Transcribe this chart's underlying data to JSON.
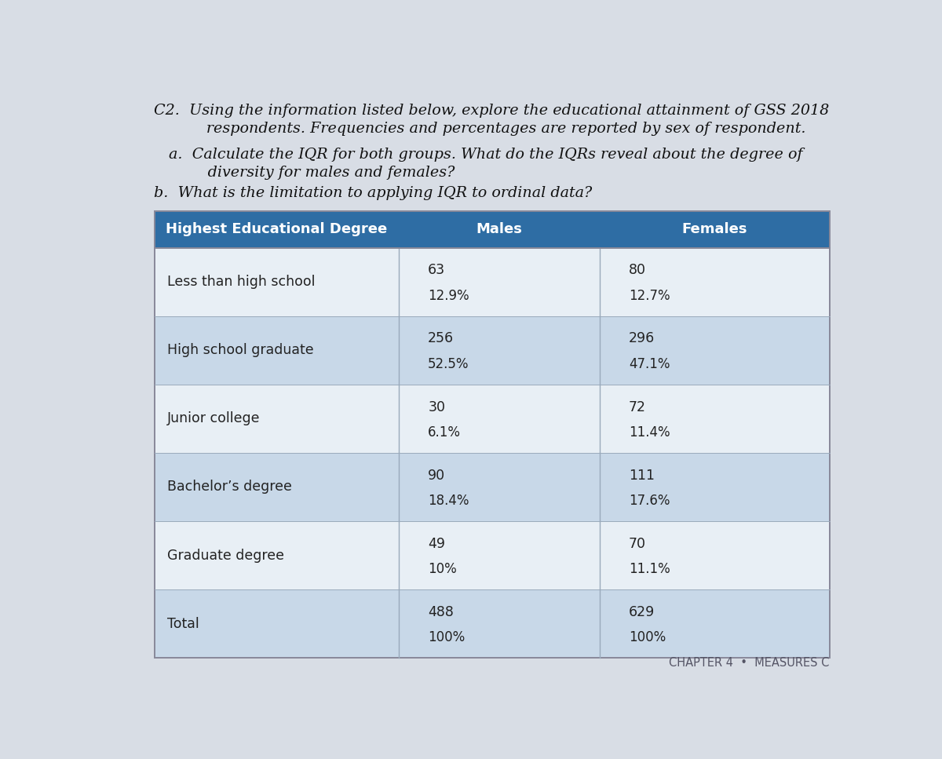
{
  "title_line1": "C2.  Using the information listed below, explore the educational attainment of GSS 2018",
  "title_line2": "       respondents. Frequencies and percentages are reported by sex of respondent.",
  "question_a_line1": "a.  Calculate the IQR for both groups. What do the IQRs reveal about the degree of",
  "question_a_line2": "     diversity for males and females?",
  "question_b": "b.  What is the limitation to applying IQR to ordinal data?",
  "footer": "CHAPTER 4  •  MEASURES C",
  "header_col1": "Highest Educational Degree",
  "header_col2": "Males",
  "header_col3": "Females",
  "header_bg": "#2E6DA4",
  "header_text_color": "#FFFFFF",
  "row_bg_shaded": "#C8D8E8",
  "row_bg_plain": "#E8EFF5",
  "body_text_color": "#222222",
  "page_bg": "#D8DDE5",
  "table_border_color": "#888899",
  "rows": [
    {
      "label": "Less than high school",
      "males_count": "63",
      "males_pct": "12.9%",
      "females_count": "80",
      "females_pct": "12.7%",
      "shaded": false
    },
    {
      "label": "High school graduate",
      "males_count": "256",
      "males_pct": "52.5%",
      "females_count": "296",
      "females_pct": "47.1%",
      "shaded": true
    },
    {
      "label": "Junior college",
      "males_count": "30",
      "males_pct": "6.1%",
      "females_count": "72",
      "females_pct": "11.4%",
      "shaded": false
    },
    {
      "label": "Bachelor’s degree",
      "males_count": "90",
      "males_pct": "18.4%",
      "females_count": "111",
      "females_pct": "17.6%",
      "shaded": true
    },
    {
      "label": "Graduate degree",
      "males_count": "49",
      "males_pct": "10%",
      "females_count": "70",
      "females_pct": "11.1%",
      "shaded": false
    },
    {
      "label": "Total",
      "males_count": "488",
      "males_pct": "100%",
      "females_count": "629",
      "females_pct": "100%",
      "shaded": true
    }
  ]
}
